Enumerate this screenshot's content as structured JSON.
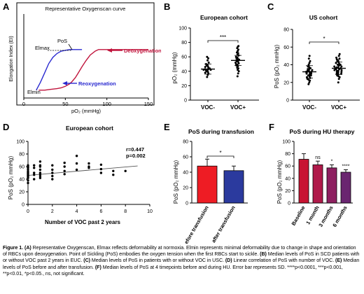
{
  "panels": {
    "A": {
      "letter": "A",
      "chart_data": {
        "type": "line",
        "title": "Representative Oxygenscan curve",
        "xlabel": "pO₂ (mmHg)",
        "ylabel": "Elongation Index (EI)",
        "xlim": [
          0,
          150
        ],
        "xticks": [
          "0",
          "50",
          "100",
          "150"
        ],
        "annotations": {
          "pos": "PoS",
          "elmax": "Elmax",
          "elmin": "Elmin"
        },
        "series": [
          {
            "name": "Deoxygenation",
            "color": "#c0143c",
            "x": [
              150,
              125,
              110,
              100,
              95,
              90,
              86,
              80,
              75,
              70,
              65,
              62,
              58,
              55,
              50,
              45,
              40,
              32,
              25,
              18
            ],
            "y": [
              0.62,
              0.62,
              0.62,
              0.62,
              0.62,
              0.62,
              0.6,
              0.55,
              0.48,
              0.4,
              0.31,
              0.26,
              0.21,
              0.18,
              0.15,
              0.13,
              0.12,
              0.11,
              0.1,
              0.1
            ]
          },
          {
            "name": "Reoxygenation",
            "color": "#2a2ad0",
            "x": [
              15,
              20,
              25,
              30,
              35,
              40,
              45,
              50,
              55,
              60,
              70
            ],
            "y": [
              0.1,
              0.2,
              0.32,
              0.44,
              0.52,
              0.57,
              0.6,
              0.61,
              0.62,
              0.62,
              0.62
            ]
          }
        ]
      }
    },
    "B": {
      "letter": "B",
      "chart_data": {
        "type": "scatter",
        "title": "European cohort",
        "ylabel": "pO₂ (mmHg)",
        "ylim": [
          0,
          100
        ],
        "yticks": [
          "0",
          "20",
          "40",
          "60",
          "80",
          "100"
        ],
        "categories": [
          "VOC-",
          "VOC+"
        ],
        "significance": "***",
        "series": [
          {
            "name": "VOC-",
            "median": 43,
            "values": [
              32,
              35,
              37,
              38,
              39,
              40,
              41,
              41,
              42,
              42,
              43,
              43,
              44,
              45,
              46,
              47,
              48,
              49,
              50,
              52,
              55,
              58,
              60
            ]
          },
          {
            "name": "VOC+",
            "median": 55,
            "values": [
              33,
              37,
              40,
              42,
              44,
              45,
              47,
              48,
              49,
              50,
              51,
              52,
              53,
              54,
              55,
              55,
              56,
              57,
              58,
              59,
              60,
              62,
              63,
              65,
              66,
              68,
              70,
              72,
              74,
              75
            ]
          }
        ]
      }
    },
    "C": {
      "letter": "C",
      "chart_data": {
        "type": "scatter",
        "title": "US cohort",
        "ylabel": "PoS (pO₂ mmHg)",
        "ylim": [
          0,
          80
        ],
        "yticks": [
          "0",
          "20",
          "40",
          "60",
          "80"
        ],
        "categories": [
          "VOC-",
          "VOC+"
        ],
        "significance": "*",
        "series": [
          {
            "name": "VOC-",
            "median": 32,
            "values": [
              18,
              20,
              22,
              23,
              24,
              25,
              26,
              27,
              28,
              28,
              29,
              30,
              30,
              31,
              31,
              32,
              32,
              33,
              33,
              34,
              35,
              35,
              36,
              37,
              38,
              40,
              42,
              44,
              47,
              50
            ]
          },
          {
            "name": "VOC+",
            "median": 36,
            "values": [
              20,
              24,
              26,
              27,
              28,
              29,
              30,
              30,
              31,
              32,
              32,
              33,
              33,
              34,
              34,
              35,
              35,
              36,
              36,
              37,
              37,
              38,
              38,
              39,
              40,
              40,
              41,
              42,
              43,
              44,
              45,
              46,
              47,
              48,
              50,
              52
            ]
          }
        ]
      }
    },
    "D": {
      "letter": "D",
      "chart_data": {
        "type": "scatter",
        "title": "European cohort",
        "xlabel": "Number of VOC past 2 years",
        "ylabel": "PoS (pO₂ mmHg)",
        "xlim": [
          0,
          10
        ],
        "ylim": [
          0,
          100
        ],
        "xticks": [
          "0",
          "2",
          "4",
          "6",
          "8",
          "10"
        ],
        "yticks": [
          "0",
          "20",
          "40",
          "60",
          "80",
          "100"
        ],
        "stats": {
          "r": "r=0.447",
          "p": "p=0.002"
        },
        "regression": {
          "x0": 0,
          "y0": 46,
          "x1": 9,
          "y1": 61
        },
        "points": [
          [
            0,
            34
          ],
          [
            0,
            38
          ],
          [
            0,
            42
          ],
          [
            0,
            44
          ],
          [
            0,
            46
          ],
          [
            0,
            48
          ],
          [
            0,
            50
          ],
          [
            0,
            52
          ],
          [
            0,
            55
          ],
          [
            0,
            58
          ],
          [
            0,
            60
          ],
          [
            0,
            62
          ],
          [
            0.5,
            40
          ],
          [
            0.5,
            47
          ],
          [
            0.5,
            50
          ],
          [
            0.5,
            58
          ],
          [
            0.5,
            62
          ],
          [
            1,
            42
          ],
          [
            1,
            45
          ],
          [
            1,
            48
          ],
          [
            1,
            50
          ],
          [
            1,
            55
          ],
          [
            1,
            60
          ],
          [
            1,
            62
          ],
          [
            1,
            68
          ],
          [
            2,
            40
          ],
          [
            2,
            45
          ],
          [
            2,
            50
          ],
          [
            2,
            55
          ],
          [
            2,
            62
          ],
          [
            3,
            48
          ],
          [
            3,
            53
          ],
          [
            3,
            60
          ],
          [
            3,
            66
          ],
          [
            4,
            55
          ],
          [
            4,
            65
          ],
          [
            4,
            77
          ],
          [
            5,
            60
          ],
          [
            5,
            65
          ],
          [
            5,
            58
          ],
          [
            6,
            50
          ],
          [
            6,
            56
          ],
          [
            6,
            63
          ],
          [
            7,
            47
          ],
          [
            7,
            53
          ],
          [
            8,
            53
          ]
        ]
      }
    },
    "E": {
      "letter": "E",
      "chart_data": {
        "type": "bar",
        "title": "PoS during transfusion",
        "ylabel": "PoS (pO₂ mmHg)",
        "ylim": [
          0,
          80
        ],
        "yticks": [
          "0",
          "20",
          "40",
          "60",
          "80"
        ],
        "categories": [
          "before transfusion",
          "after transfusion"
        ],
        "values": [
          48,
          42
        ],
        "errors": [
          9,
          6
        ],
        "colors": [
          "#ee1c24",
          "#2b3a9e"
        ],
        "significance": "*"
      }
    },
    "F": {
      "letter": "F",
      "chart_data": {
        "type": "bar",
        "title": "PoS during HU therapy",
        "ylabel": "PoS (pO₂ mmHg)",
        "ylim": [
          0,
          100
        ],
        "yticks": [
          "0",
          "20",
          "40",
          "60",
          "80",
          "100"
        ],
        "categories": [
          "Baseline",
          "1 month",
          "3 months",
          "6 months"
        ],
        "values": [
          71,
          62,
          57,
          50
        ],
        "errors": [
          9,
          6,
          5,
          4
        ],
        "colors": [
          "#c81432",
          "#b01a4a",
          "#8e2060",
          "#6a2570"
        ],
        "significance": [
          "",
          "ns",
          "*",
          "****"
        ]
      }
    }
  },
  "caption": {
    "head": "Figure 1.",
    "a_tag": "(A)",
    "a_text": " Representative Oxygenscan, Elmax reflects deformability at normoxia. Elmin represents minimal deformability due to change in shape and orientation of RBCs upon deoxygenation. Point of Sickling (PoS) embodies the oxygen tension when the first RBCs start to sickle. ",
    "b_tag": "(B)",
    "b_text": " Median levels of PoS in SCD patients with or without VOC past 2 years in EUC. ",
    "c_tag": "(C)",
    "c_text": " Median levels of PoS in patients with or without VOC in USC. ",
    "d_tag": "(D)",
    "d_text": " Linear correlation of PoS with number of VOC. ",
    "e_tag": "(E)",
    "e_text": " Median levels of PoS before and after transfusion. ",
    "f_tag": "(F)",
    "f_text": " Median levels of PoS at 4 timepoints before and during HU. Error bar represents SD. ****p<0.0001, ***p<0.001, **p<0.01, *p<0.05., ns, not significant."
  }
}
